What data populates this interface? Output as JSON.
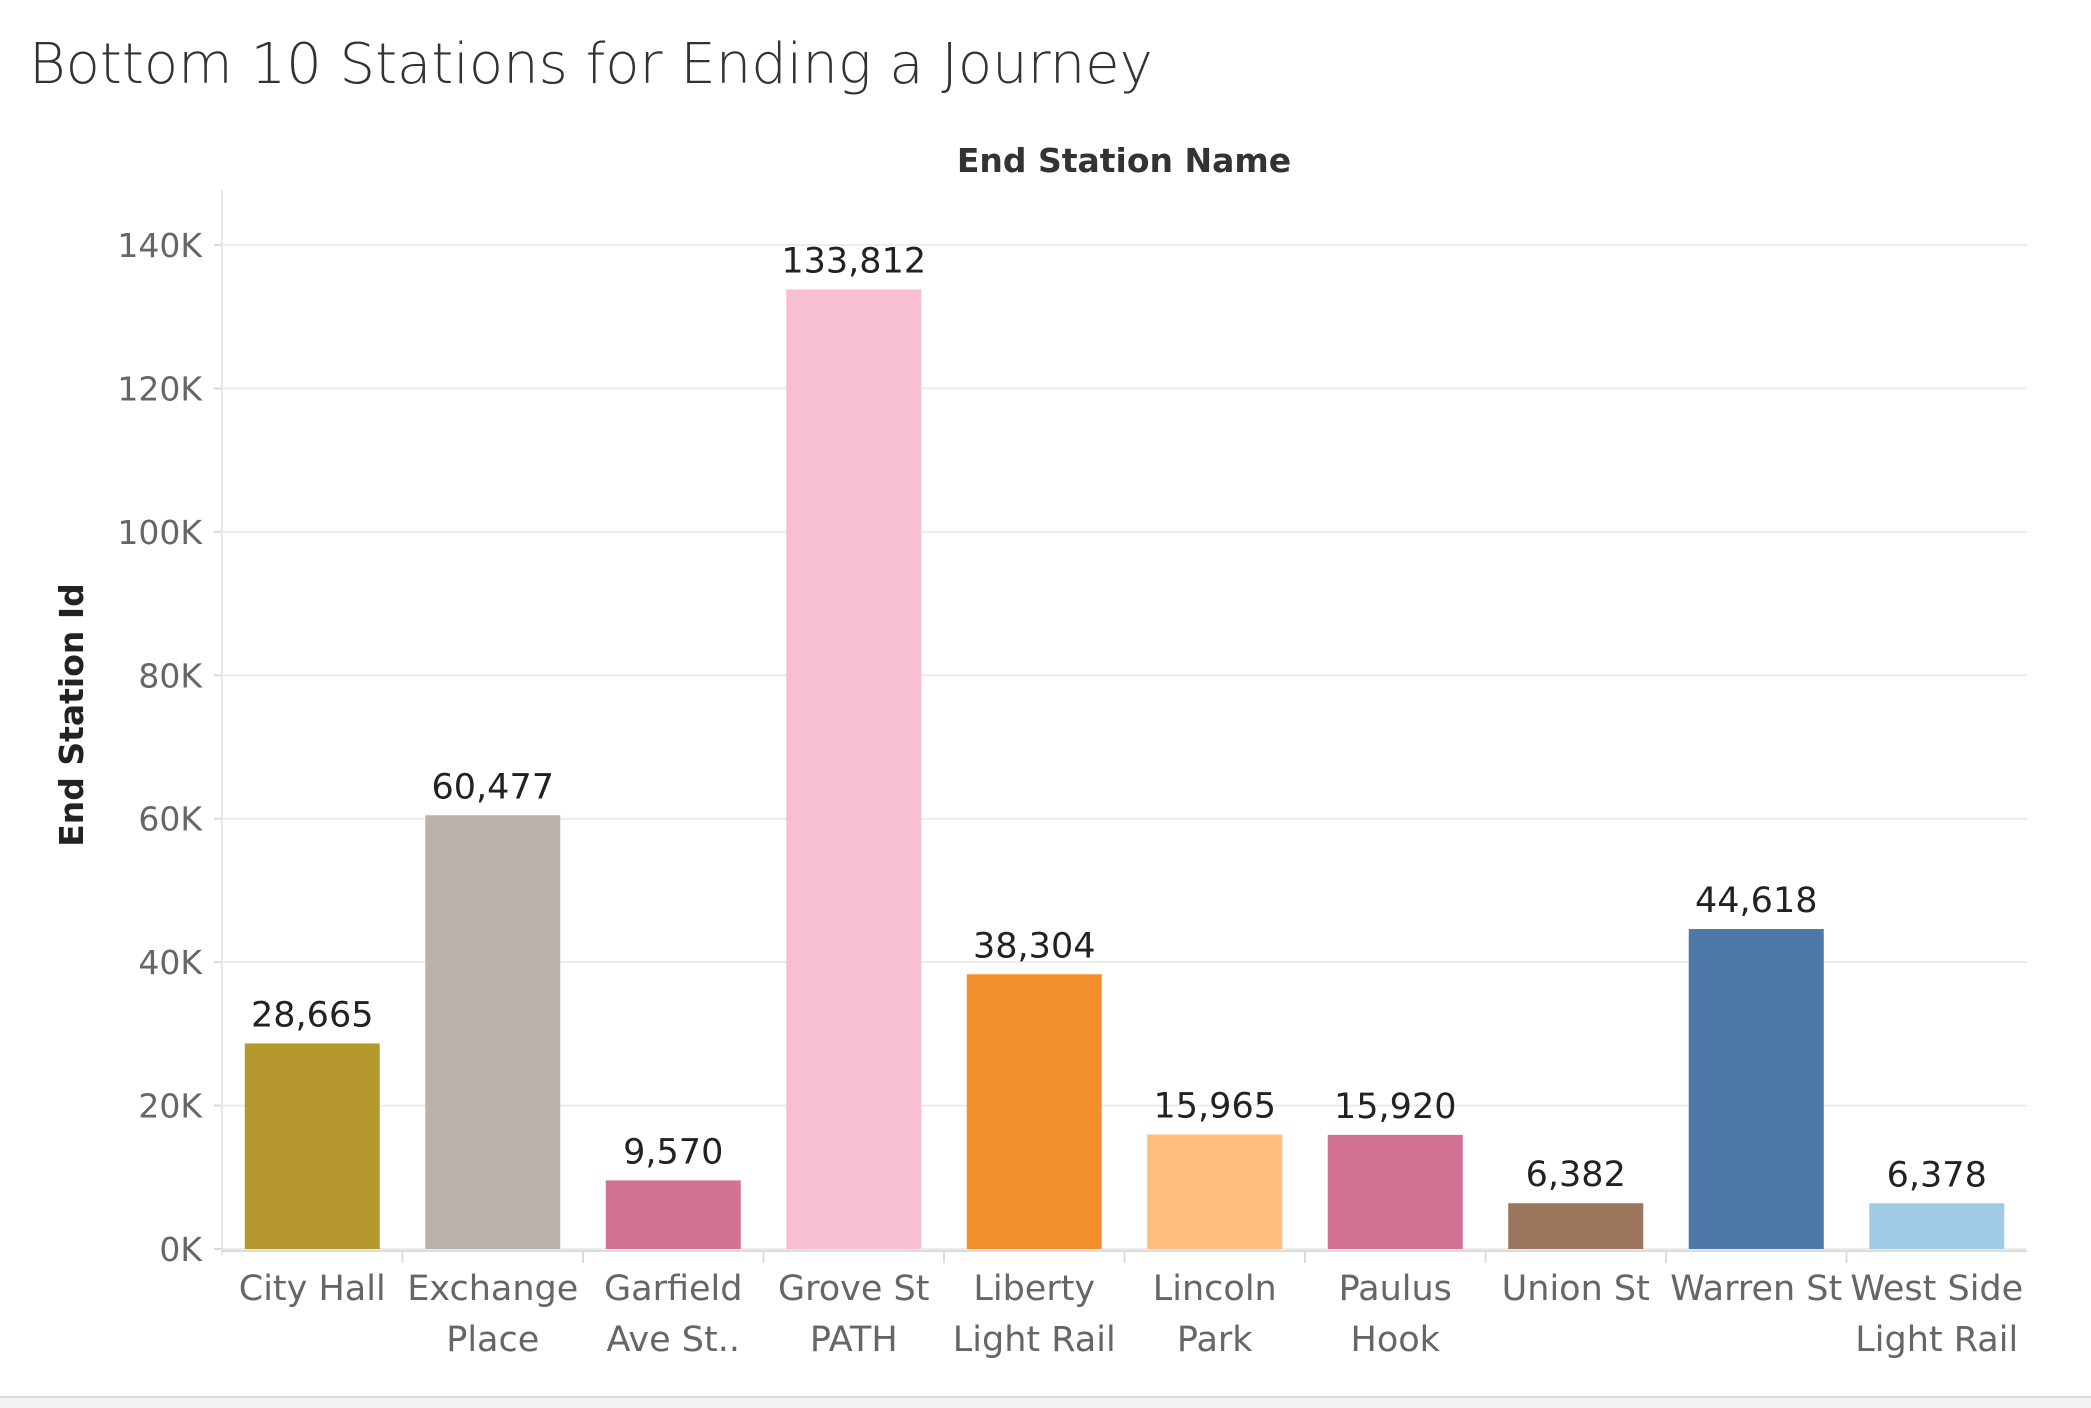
{
  "chart_data": {
    "type": "bar",
    "title": "Bottom 10 Stations for Ending a Journey",
    "column_header": "End Station Name",
    "ylabel": "End Station Id",
    "xlabel": "",
    "ylim": [
      0,
      140000
    ],
    "yticks": [
      0,
      20000,
      40000,
      60000,
      80000,
      100000,
      120000,
      140000
    ],
    "ytick_labels": [
      "0K",
      "20K",
      "40K",
      "60K",
      "80K",
      "100K",
      "120K",
      "140K"
    ],
    "grid": true,
    "categories": [
      [
        "City Hall"
      ],
      [
        "Exchange",
        "Place"
      ],
      [
        "Garfield",
        "Ave St.."
      ],
      [
        "Grove St",
        "PATH"
      ],
      [
        "Liberty",
        "Light Rail"
      ],
      [
        "Lincoln",
        "Park"
      ],
      [
        "Paulus",
        "Hook"
      ],
      [
        "Union St"
      ],
      [
        "Warren St"
      ],
      [
        "West Side",
        "Light Rail"
      ]
    ],
    "values": [
      28665,
      60477,
      9570,
      133812,
      38304,
      15965,
      15920,
      6382,
      44618,
      6378
    ],
    "value_labels": [
      "28,665",
      "60,477",
      "9,570",
      "133,812",
      "38,304",
      "15,965",
      "15,920",
      "6,382",
      "44,618",
      "6,378"
    ],
    "colors": [
      "#B5992E",
      "#BAB0AC",
      "#D37295",
      "#F8BFD3",
      "#F28E2B",
      "#FFBE7D",
      "#D37295",
      "#9C755F",
      "#4E79A7",
      "#A0CBE8"
    ]
  }
}
